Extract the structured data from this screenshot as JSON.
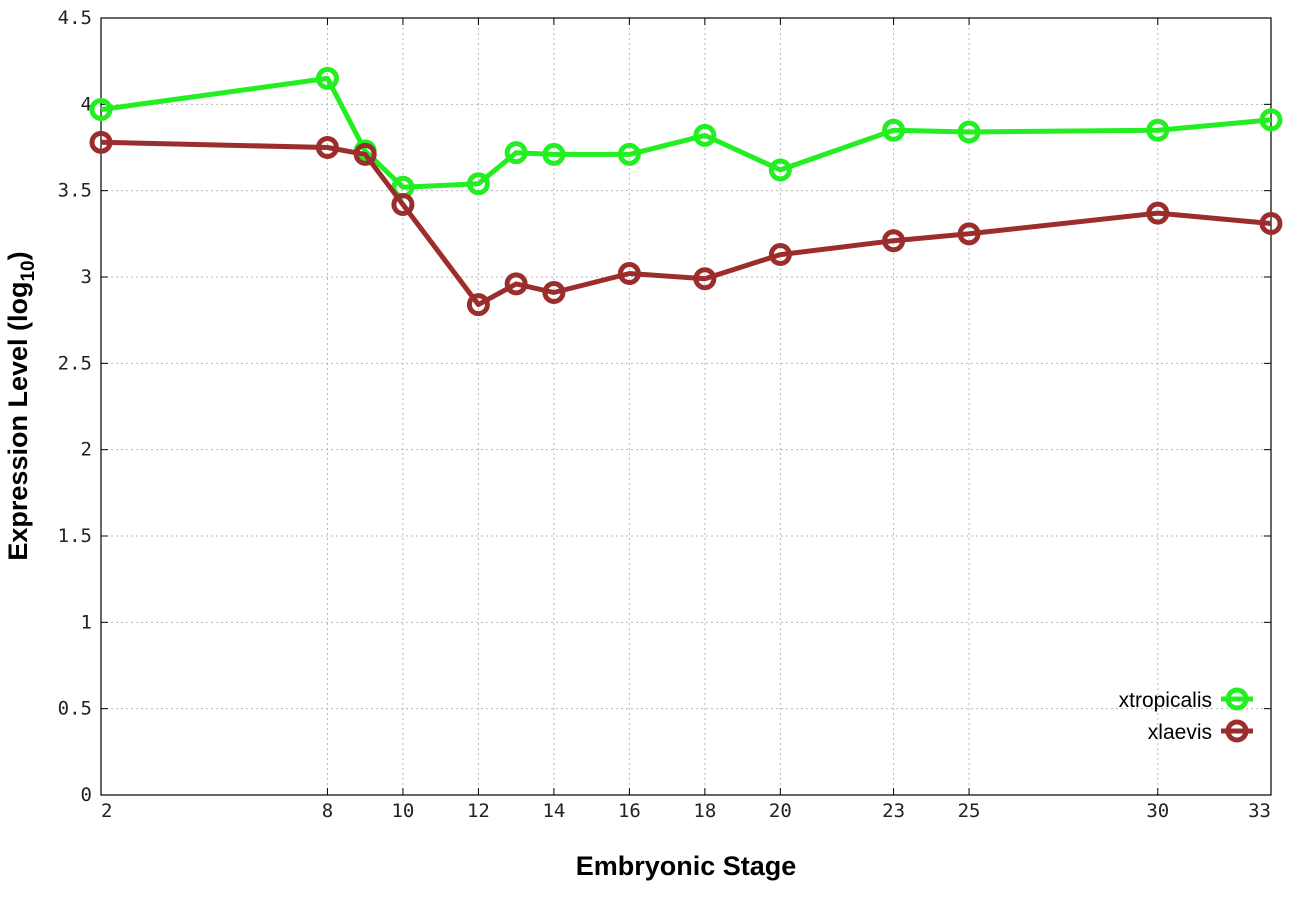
{
  "chart_data": {
    "type": "line",
    "title": "",
    "xlabel": "Embryonic Stage",
    "ylabel_main": "Expression Level (log",
    "ylabel_sub": "10",
    "ylabel_close": ")",
    "x": [
      2,
      8,
      9,
      10,
      12,
      13,
      14,
      16,
      18,
      20,
      23,
      25,
      30,
      33
    ],
    "x_ticks": [
      2,
      8,
      10,
      12,
      14,
      16,
      18,
      20,
      23,
      25,
      30,
      33
    ],
    "y_ticks": [
      "0",
      "0.5",
      "1",
      "1.5",
      "2",
      "2.5",
      "3",
      "3.5",
      "4",
      "4.5"
    ],
    "xlim": [
      2,
      33
    ],
    "ylim": [
      0,
      4.5
    ],
    "grid": true,
    "legend_position": "bottom-right",
    "series": [
      {
        "name": "xtropicalis",
        "color": "#22ee22",
        "values": [
          3.97,
          4.15,
          3.73,
          3.52,
          3.54,
          3.72,
          3.71,
          3.71,
          3.82,
          3.62,
          3.85,
          3.84,
          3.85,
          3.91
        ]
      },
      {
        "name": "xlaevis",
        "color": "#9b2d2d",
        "values": [
          3.78,
          3.75,
          3.71,
          3.42,
          2.84,
          2.96,
          2.91,
          3.02,
          2.99,
          3.13,
          3.21,
          3.25,
          3.37,
          3.31
        ]
      }
    ]
  }
}
